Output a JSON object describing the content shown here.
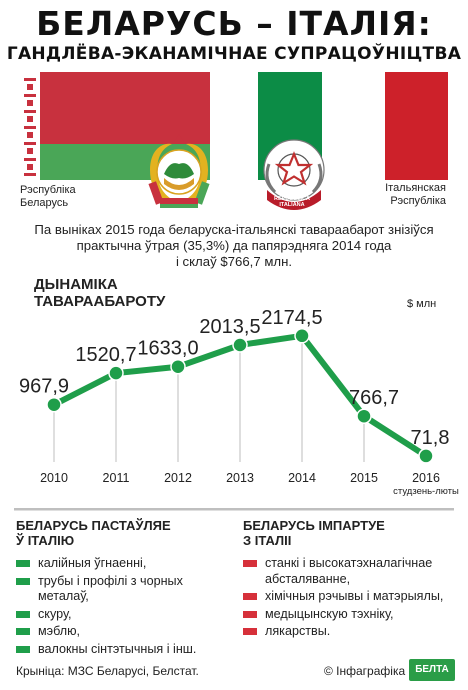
{
  "header": {
    "title": "БЕЛАРУСЬ – ІТАЛІЯ:",
    "subtitle": "ГАНДЛЁВА-ЭКАНАМІЧНАЕ СУПРАЦОЎНІЦТВА"
  },
  "countries": {
    "belarus": [
      "Рэспубліка",
      "Беларусь"
    ],
    "italy": [
      "Італьянская",
      "Рэспубліка"
    ],
    "italy_emblem_text": "REPUBBLICA ITALIANA"
  },
  "intro": [
    "Па выніках 2015 года беларуска-італьянскі тавараабарот знізіўся",
    "практычна ўтрая (35,3%) да папярэдняга 2014 года",
    "і склаў $766,7 млн."
  ],
  "colors": {
    "green": "#1f9e4a",
    "red": "#d6303a",
    "belarus_red": "#c8313e",
    "belarus_green": "#4aa657",
    "italy_green": "#0c8c46",
    "italy_red": "#cd212a"
  },
  "chart_data": {
    "type": "line",
    "title": [
      "ДЫНАМІКА",
      "ТАВАРААБАРОТУ"
    ],
    "unit": "$ млн",
    "categories": [
      "2010",
      "2011",
      "2012",
      "2013",
      "2014",
      "2015",
      "2016"
    ],
    "category_note": "студзень-люты",
    "values": [
      967.9,
      1520.7,
      1633.0,
      2013.5,
      2174.5,
      766.7,
      71.8
    ],
    "value_labels": [
      "967,9",
      "1520,7",
      "1633,0",
      "2013,5",
      "2174,5",
      "766,7",
      "71,8"
    ],
    "ylim": [
      0,
      2500
    ],
    "grid": "vertical"
  },
  "exports": {
    "title": [
      "БЕЛАРУСЬ ПАСТАЎЛЯЕ",
      "Ў ІТАЛІЮ"
    ],
    "items": [
      "калійныя ўгнаенні,",
      "трубы і профілі з чорных металаў,",
      "скуру,",
      "мэблю,",
      "валокны сінтэтычныя і інш."
    ]
  },
  "imports": {
    "title": [
      "БЕЛАРУСЬ ІМПАРТУЕ",
      "З ІТАЛІІ"
    ],
    "items": [
      "станкі і высокатэхналагічнае абсталяванне,",
      "хімічныя рэчывы і матэрыялы,",
      "медыцынскую тэхніку,",
      "лякарствы."
    ]
  },
  "footer": {
    "source": "Крыніца: МЗС Беларусі, Белстат.",
    "copyright": "© Інфаграфіка",
    "logo": "БЕЛТА"
  }
}
